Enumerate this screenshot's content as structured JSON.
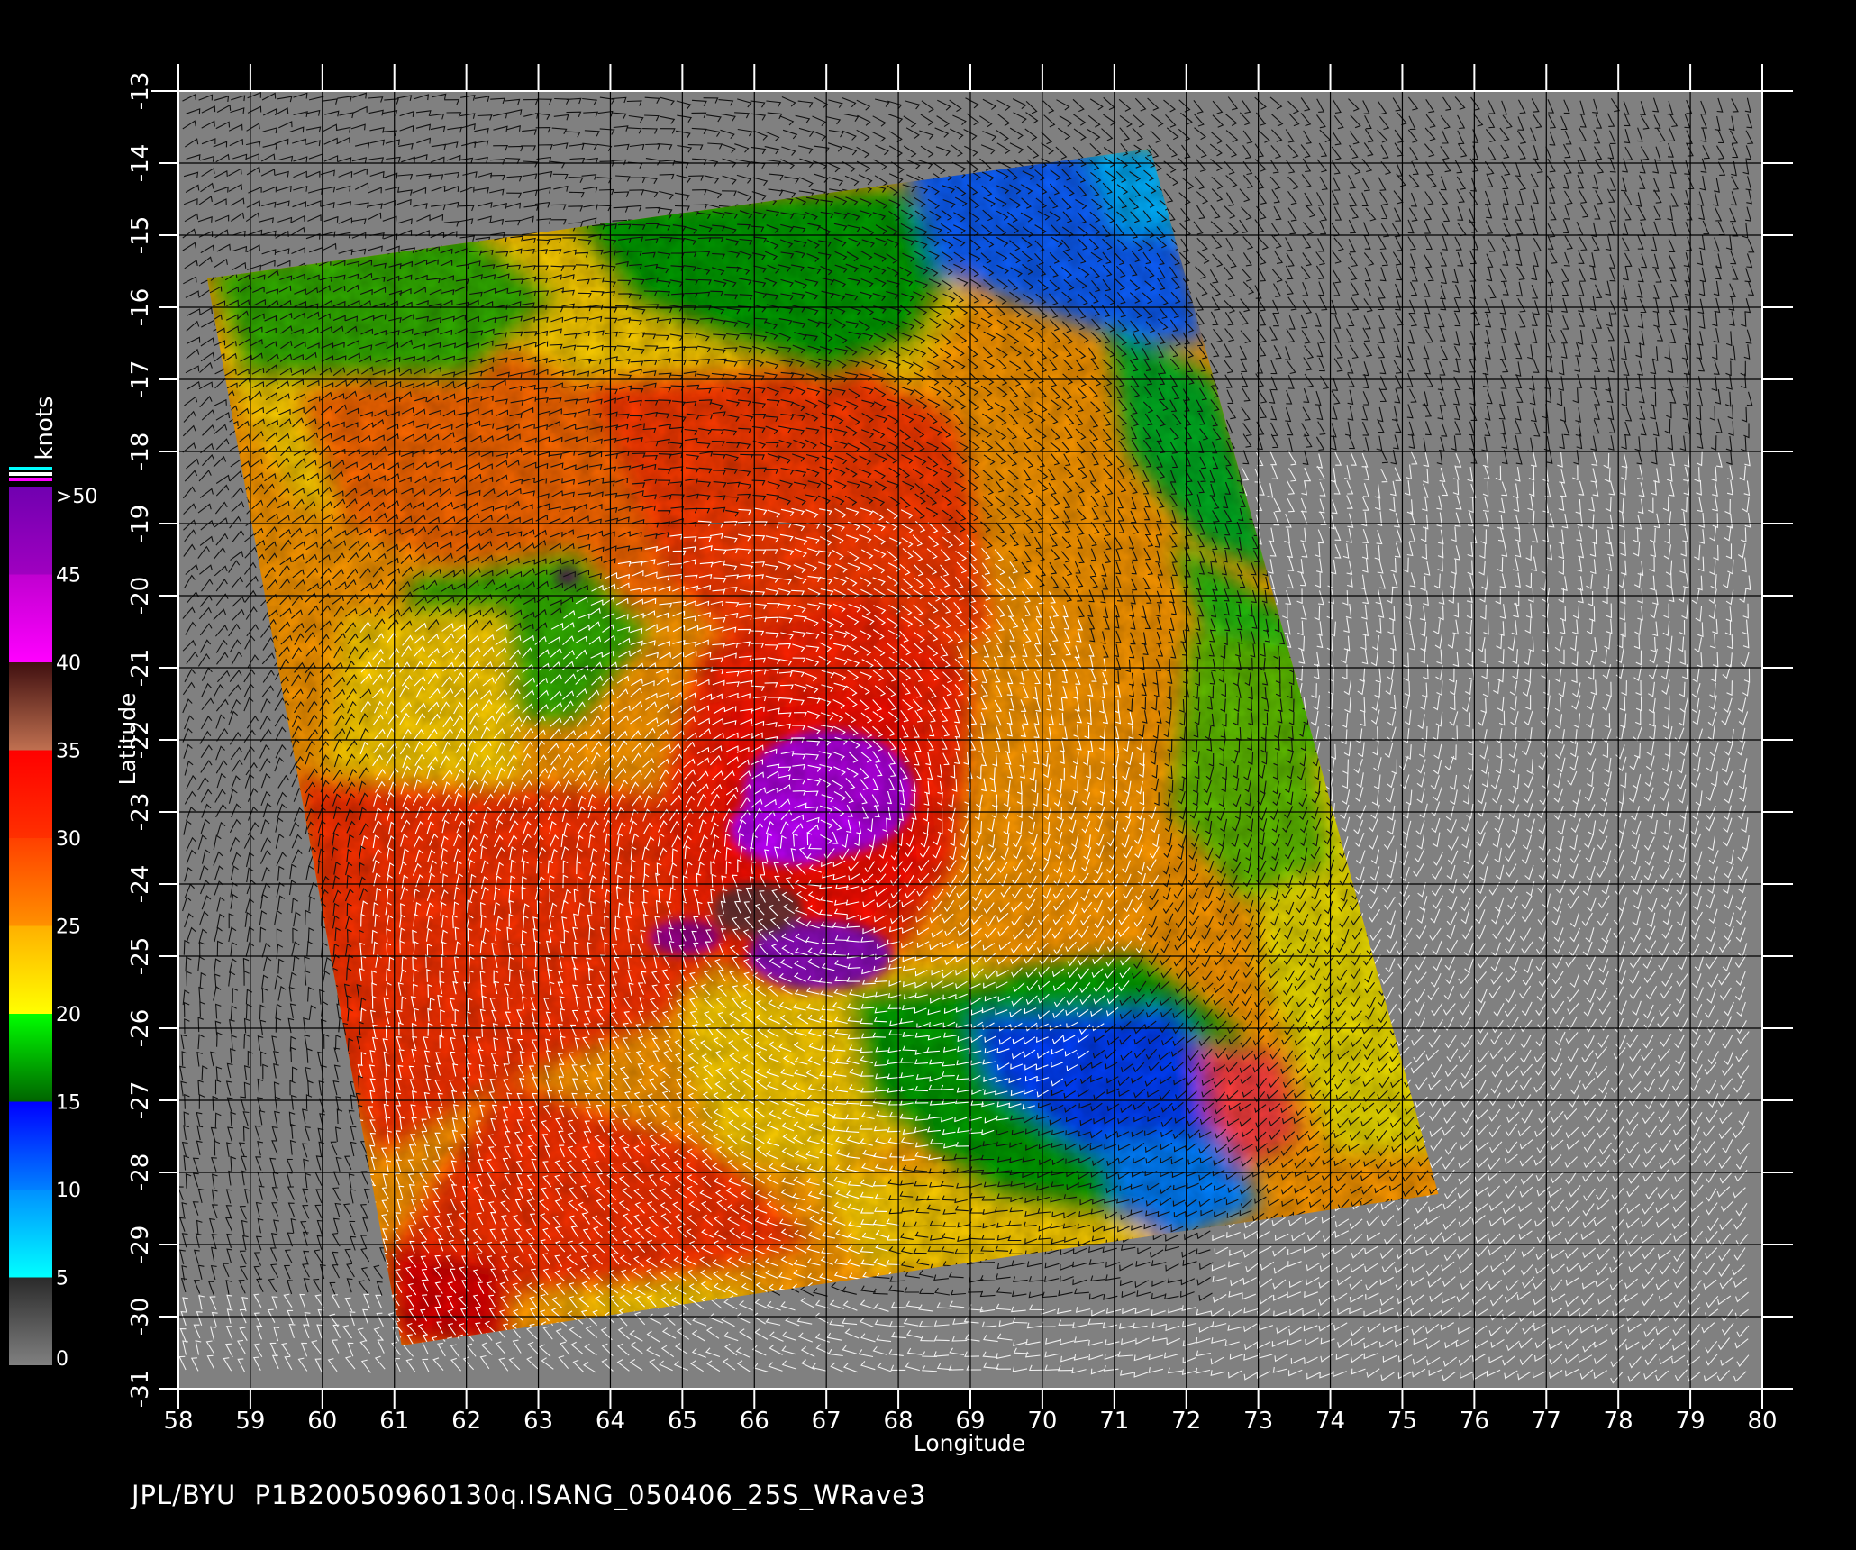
{
  "map": {
    "x_axis_label": "Longitude",
    "y_axis_label": "Latitude",
    "longitude_ticks": [
      "58",
      "59",
      "60",
      "61",
      "62",
      "63",
      "64",
      "65",
      "66",
      "67",
      "68",
      "69",
      "70",
      "71",
      "72",
      "73",
      "74",
      "75",
      "76",
      "77",
      "78",
      "79",
      "80"
    ],
    "latitude_ticks": [
      "-13",
      "-14",
      "-15",
      "-16",
      "-17",
      "-18",
      "-19",
      "-20",
      "-21",
      "-22",
      "-23",
      "-24",
      "-25",
      "-26",
      "-27",
      "-28",
      "-29",
      "-30",
      "-31"
    ],
    "lon_range": [
      58,
      80
    ],
    "lat_range": [
      -13,
      -31
    ],
    "background_color": "#808080",
    "grid_color": "#000000",
    "swath_corners_lonlat": [
      [
        58.4,
        -15.6
      ],
      [
        71.5,
        -13.8
      ],
      [
        75.5,
        -28.3
      ],
      [
        61.1,
        -30.4
      ]
    ],
    "storm_center_lonlat": [
      66.9,
      -23.4
    ]
  },
  "colorbar": {
    "unit_label": "knots",
    "tick_labels": [
      "0",
      "5",
      "10",
      "15",
      "20",
      "25",
      "30",
      "35",
      "40",
      "45",
      ">50"
    ],
    "bands": [
      {
        "from": 0,
        "to": 5,
        "color_start": "#808080",
        "color_end": "#2a2a2a"
      },
      {
        "from": 5,
        "to": 10,
        "color_start": "#00ffff",
        "color_end": "#0090ff"
      },
      {
        "from": 10,
        "to": 15,
        "color_start": "#0080ff",
        "color_end": "#0000ff"
      },
      {
        "from": 15,
        "to": 20,
        "color_start": "#006400",
        "color_end": "#00ff00"
      },
      {
        "from": 20,
        "to": 25,
        "color_start": "#ffff00",
        "color_end": "#ffb000"
      },
      {
        "from": 25,
        "to": 30,
        "color_start": "#ff9000",
        "color_end": "#ff4000"
      },
      {
        "from": 30,
        "to": 35,
        "color_start": "#ff3000",
        "color_end": "#ff0000"
      },
      {
        "from": 35,
        "to": 40,
        "color_start": "#c07050",
        "color_end": "#401010"
      },
      {
        "from": 40,
        "to": 45,
        "color_start": "#ff00ff",
        "color_end": "#c000d0"
      },
      {
        "from": 45,
        "to": 50,
        "color_start": "#a000c0",
        "color_end": "#7000b0"
      }
    ],
    "top_stripes": [
      "#00ffff",
      "#ffffff",
      "#ff00ff"
    ]
  },
  "footer": {
    "caption": "JPL/BYU  P1B20050960130q.ISANG_050406_25S_WRave3"
  }
}
